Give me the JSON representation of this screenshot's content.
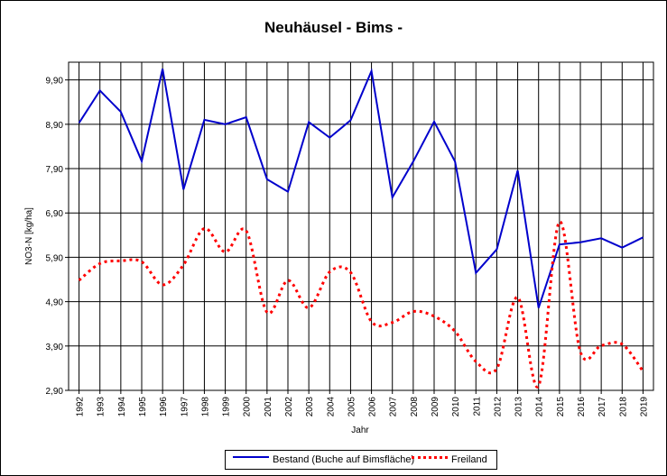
{
  "chart_data": {
    "type": "line",
    "title": "Neuhäusel - Bims -",
    "xlabel": "Jahr",
    "ylabel": "NO3-N [kg/ha]",
    "ylim": [
      2.9,
      10.3
    ],
    "yticks": [
      "2,90",
      "3,90",
      "4,90",
      "5,90",
      "6,90",
      "7,90",
      "8,90",
      "9,90"
    ],
    "ytick_values": [
      2.9,
      3.9,
      4.9,
      5.9,
      6.9,
      7.9,
      8.9,
      9.9
    ],
    "x": [
      "1992",
      "1993",
      "1994",
      "1995",
      "1996",
      "1997",
      "1998",
      "1999",
      "2000",
      "2001",
      "2002",
      "2003",
      "2004",
      "2005",
      "2006",
      "2007",
      "2008",
      "2009",
      "2010",
      "2011",
      "2012",
      "2013",
      "2014",
      "2015",
      "2016",
      "2017",
      "2018",
      "2019"
    ],
    "grid": true,
    "legend": "bottom",
    "series": [
      {
        "name": "Bestand (Buche auf Bimsfläche)",
        "color": "#0000cc",
        "style": "solid",
        "values": [
          8.93,
          9.66,
          9.18,
          8.07,
          10.15,
          7.43,
          9.0,
          8.9,
          9.06,
          7.66,
          7.38,
          8.95,
          8.6,
          8.99,
          10.1,
          7.25,
          8.06,
          8.96,
          8.06,
          5.55,
          6.08,
          7.86,
          4.76,
          6.19,
          6.24,
          6.33,
          6.12,
          6.35
        ]
      },
      {
        "name": "Freiland",
        "color": "#ff0000",
        "style": "dotted",
        "values": [
          5.38,
          5.76,
          5.82,
          5.8,
          5.28,
          5.73,
          6.55,
          6.02,
          6.5,
          4.66,
          5.38,
          4.76,
          5.57,
          5.56,
          4.45,
          4.43,
          4.68,
          4.57,
          4.23,
          3.55,
          3.39,
          5.0,
          3.0,
          6.7,
          3.77,
          3.91,
          3.94,
          3.33
        ]
      }
    ]
  }
}
